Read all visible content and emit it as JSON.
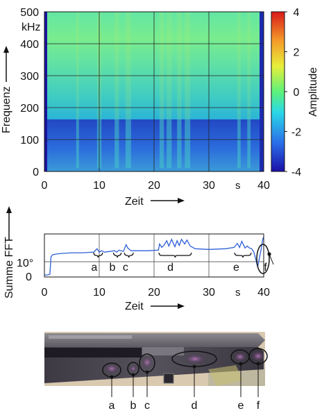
{
  "chart_data": [
    {
      "type": "heatmap",
      "title": "",
      "xlabel": "Zeit",
      "ylabel": "Frequenz",
      "x_unit": "s",
      "y_unit": "kHz",
      "xlim": [
        0,
        40
      ],
      "ylim": [
        0,
        500
      ],
      "x_ticks": [
        0,
        10,
        20,
        30,
        40
      ],
      "y_ticks": [
        0,
        100,
        200,
        300,
        400,
        500
      ],
      "grid": true,
      "colorbar": {
        "label": "Amplitude",
        "range": [
          -4,
          4
        ],
        "ticks": [
          4,
          2,
          0,
          -2,
          -4
        ],
        "colors": [
          "#1a10a8",
          "#2a6fe8",
          "#2ad8e8",
          "#5ef27a",
          "#e8ee3a",
          "#f49a2a",
          "#d81a1a"
        ]
      },
      "bands": [
        {
          "freq_range_khz": [
            0,
            165
          ],
          "amplitude": -3
        },
        {
          "freq_range_khz": [
            165,
            500
          ],
          "amplitude": -1
        }
      ],
      "bright_intervals_s": [
        [
          5.8,
          6.3
        ],
        [
          9.6,
          10.4
        ],
        [
          12.8,
          13.6
        ],
        [
          14.8,
          15.8
        ],
        [
          21.0,
          21.8
        ],
        [
          22.3,
          23.2
        ],
        [
          24.2,
          25.0
        ],
        [
          25.6,
          26.6
        ],
        [
          35.2,
          35.8
        ],
        [
          37.0,
          37.6
        ]
      ]
    },
    {
      "type": "line",
      "title": "",
      "xlabel": "Zeit",
      "ylabel": "Summe FFT",
      "x_unit": "s",
      "xlim": [
        0,
        40
      ],
      "x_ticks": [
        0,
        10,
        20,
        30,
        40
      ],
      "y_ticks_labels": [
        "0",
        "10°"
      ],
      "grid": true,
      "series": [
        {
          "color": "#2e5fd8",
          "x": [
            0,
            0.5,
            1.0,
            1.2,
            1.5,
            2,
            3,
            5,
            7,
            9,
            9.6,
            10.0,
            10.4,
            11,
            12.8,
            13.2,
            13.6,
            14.4,
            14.9,
            15.2,
            15.8,
            17,
            19,
            20.8,
            21.0,
            21.4,
            21.8,
            22.3,
            22.7,
            23.2,
            23.8,
            24.2,
            24.6,
            25.0,
            25.6,
            26.0,
            26.6,
            27.5,
            30,
            33,
            34.6,
            35.2,
            35.6,
            36.0,
            36.6,
            37.0,
            37.4,
            37.8,
            38.2,
            38.6,
            38.9,
            39.2,
            39.5,
            39.8,
            40
          ],
          "y": [
            0.3,
            0.3,
            0.4,
            3.0,
            3.3,
            3.4,
            3.5,
            3.6,
            3.6,
            3.7,
            4.2,
            3.7,
            3.9,
            3.7,
            3.9,
            3.7,
            4.0,
            3.8,
            4.8,
            4.3,
            3.9,
            3.9,
            3.9,
            4.0,
            4.9,
            4.4,
            4.7,
            5.4,
            4.6,
            5.6,
            4.5,
            5.4,
            4.7,
            5.6,
            4.9,
            5.5,
            4.6,
            4.2,
            4.1,
            4.2,
            4.4,
            5.0,
            4.4,
            5.3,
            4.3,
            4.6,
            4.3,
            4.2,
            3.7,
            2.5,
            1.5,
            2.8,
            4.0,
            5.5,
            6.0
          ]
        }
      ],
      "annotations": [
        {
          "label": "a",
          "x": 9.6
        },
        {
          "label": "b",
          "x": 12.9
        },
        {
          "label": "c",
          "x": 15.3
        },
        {
          "label": "d",
          "x": 24.0
        },
        {
          "label": "e",
          "x": 36.0
        },
        {
          "label": "f",
          "x": 39.3
        }
      ]
    }
  ],
  "photo": {
    "labels": [
      "a",
      "b",
      "c",
      "d",
      "e",
      "f"
    ],
    "colors": {
      "top": "#6a6670",
      "body": "#4a4650",
      "dark": "#1e1c22",
      "background": "#d9c9b0",
      "glow": "#7a4a7a"
    }
  }
}
